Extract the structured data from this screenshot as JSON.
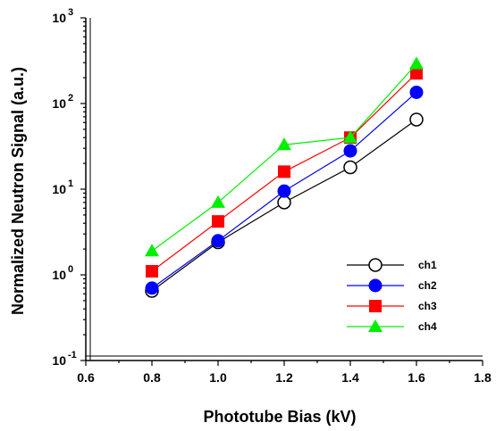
{
  "chart_data": {
    "type": "line",
    "xlabel": "Phototube Bias (kV)",
    "ylabel": "Normalized Neutron Signal (a.u.)",
    "xlim": [
      0.6,
      1.8
    ],
    "ylim": [
      0.1,
      1000
    ],
    "yscale": "log",
    "x_ticks": [
      "0.6",
      "0.8",
      "1.0",
      "1.2",
      "1.4",
      "1.6",
      "1.8"
    ],
    "y_ticks": [
      {
        "base": "10",
        "exp": "-1",
        "value": 0.1
      },
      {
        "base": "10",
        "exp": "0",
        "value": 1
      },
      {
        "base": "10",
        "exp": "1",
        "value": 10
      },
      {
        "base": "10",
        "exp": "2",
        "value": 100
      },
      {
        "base": "10",
        "exp": "3",
        "value": 1000
      }
    ],
    "x": [
      0.8,
      1.0,
      1.2,
      1.4,
      1.6
    ],
    "legend_position": "lower-right",
    "grid": false,
    "series": [
      {
        "name": "ch1",
        "values": [
          0.65,
          2.4,
          7,
          18,
          65
        ],
        "color": "#000000",
        "marker": "open-circle"
      },
      {
        "name": "ch2",
        "values": [
          0.7,
          2.5,
          9.5,
          28,
          135
        ],
        "color": "#0000ff",
        "marker": "filled-circle"
      },
      {
        "name": "ch3",
        "values": [
          1.1,
          4.2,
          16,
          40,
          225
        ],
        "color": "#ff0000",
        "marker": "square"
      },
      {
        "name": "ch4",
        "values": [
          1.9,
          7,
          33,
          40,
          290
        ],
        "color": "#00ee00",
        "marker": "triangle"
      }
    ]
  }
}
